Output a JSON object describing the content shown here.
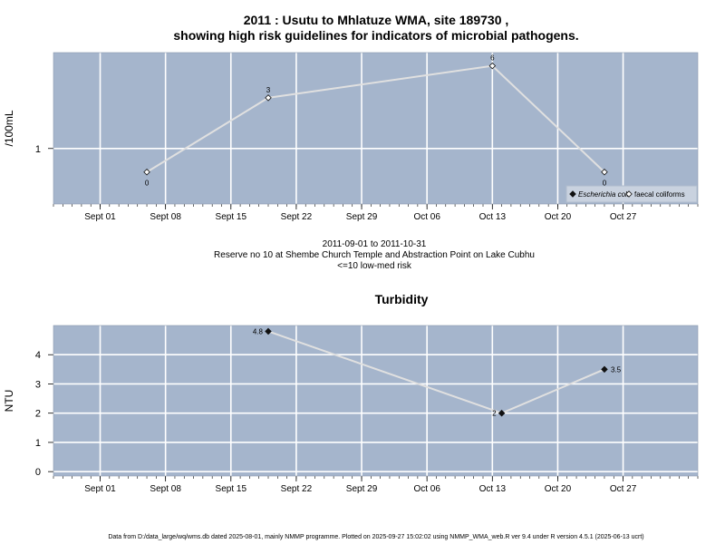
{
  "header": {
    "title_line1": "2011 : Usutu to Mhlatuze WMA, site 189730 ,",
    "title_line2": "showing high risk guidelines for indicators of microbial pathogens."
  },
  "middle_notes": {
    "date_range": "2011-09-01 to 2011-10-31",
    "location": "Reserve no 10 at Shembe Church Temple and Abstraction Point on Lake Cubhu",
    "risk_note": "<=10 low-med risk"
  },
  "footer": {
    "text": "Data from D:/data_large/wq/wms.db dated 2025-08-01, mainly NMMP programme. Plotted on 2025-09-27 15:02:02 using NMMP_WMA_web.R ver 9.4 under R version 4.5.1 (2025-06-13 ucrt)"
  },
  "colors": {
    "panel_bg": "#a5b5cc",
    "grid": "#ffffff",
    "series_line": "#e0e0e0",
    "point": "#111111"
  },
  "chart_data": [
    {
      "type": "line",
      "title": "",
      "xlabel": "",
      "ylabel": "/100mL",
      "x_axis": {
        "kind": "date",
        "range": [
          "2011-08-27",
          "2011-11-04"
        ],
        "labeled_ticks": [
          {
            "date": "2011-09-01",
            "label": "Sept 01"
          },
          {
            "date": "2011-09-08",
            "label": "Sept 08"
          },
          {
            "date": "2011-09-15",
            "label": "Sept 15"
          },
          {
            "date": "2011-09-22",
            "label": "Sept 22"
          },
          {
            "date": "2011-09-29",
            "label": "Sept 29"
          },
          {
            "date": "2011-10-06",
            "label": "Oct 06"
          },
          {
            "date": "2011-10-13",
            "label": "Oct 13"
          },
          {
            "date": "2011-10-20",
            "label": "Oct 20"
          },
          {
            "date": "2011-10-27",
            "label": "Oct 27"
          }
        ]
      },
      "y_axis": {
        "scale": "log",
        "ticks": [
          {
            "value": 1,
            "label": "1"
          }
        ],
        "ylim": [
          0.3,
          8
        ]
      },
      "series": [
        {
          "name": "faecal coliforms",
          "marker": "open-diamond",
          "points": [
            {
              "x": "2011-09-06",
              "y": 0.6,
              "label": "0"
            },
            {
              "x": "2011-09-19",
              "y": 3,
              "label": "3"
            },
            {
              "x": "2011-10-13",
              "y": 6,
              "label": "6"
            },
            {
              "x": "2011-10-25",
              "y": 0.6,
              "label": "0"
            }
          ]
        }
      ],
      "legend": {
        "position": "bottom-right",
        "entries": [
          {
            "label": "Escherichia coli",
            "marker": "filled-diamond",
            "italic": true
          },
          {
            "label": "faecal coliforms",
            "marker": "open-diamond",
            "italic": false
          }
        ]
      },
      "grid": true
    },
    {
      "type": "line",
      "title": "Turbidity",
      "xlabel": "",
      "ylabel": "NTU",
      "x_axis": {
        "kind": "date",
        "range": [
          "2011-08-27",
          "2011-11-04"
        ],
        "labeled_ticks": [
          {
            "date": "2011-09-01",
            "label": "Sept 01"
          },
          {
            "date": "2011-09-08",
            "label": "Sept 08"
          },
          {
            "date": "2011-09-15",
            "label": "Sept 15"
          },
          {
            "date": "2011-09-22",
            "label": "Sept 22"
          },
          {
            "date": "2011-09-29",
            "label": "Sept 29"
          },
          {
            "date": "2011-10-06",
            "label": "Oct 06"
          },
          {
            "date": "2011-10-13",
            "label": "Oct 13"
          },
          {
            "date": "2011-10-20",
            "label": "Oct 20"
          },
          {
            "date": "2011-10-27",
            "label": "Oct 27"
          }
        ]
      },
      "y_axis": {
        "scale": "linear",
        "ticks": [
          {
            "value": 0,
            "label": "0"
          },
          {
            "value": 1,
            "label": "1"
          },
          {
            "value": 2,
            "label": "2"
          },
          {
            "value": 3,
            "label": "3"
          },
          {
            "value": 4,
            "label": "4"
          }
        ],
        "ylim": [
          -0.15,
          5
        ]
      },
      "series": [
        {
          "name": "",
          "marker": "filled-diamond",
          "points": [
            {
              "x": "2011-09-19",
              "y": 4.8,
              "label": "4.8",
              "label_side": "left"
            },
            {
              "x": "2011-10-14",
              "y": 2,
              "label": "2",
              "label_side": "left"
            },
            {
              "x": "2011-10-25",
              "y": 3.5,
              "label": "3.5",
              "label_side": "right"
            }
          ]
        }
      ],
      "grid": true
    }
  ]
}
